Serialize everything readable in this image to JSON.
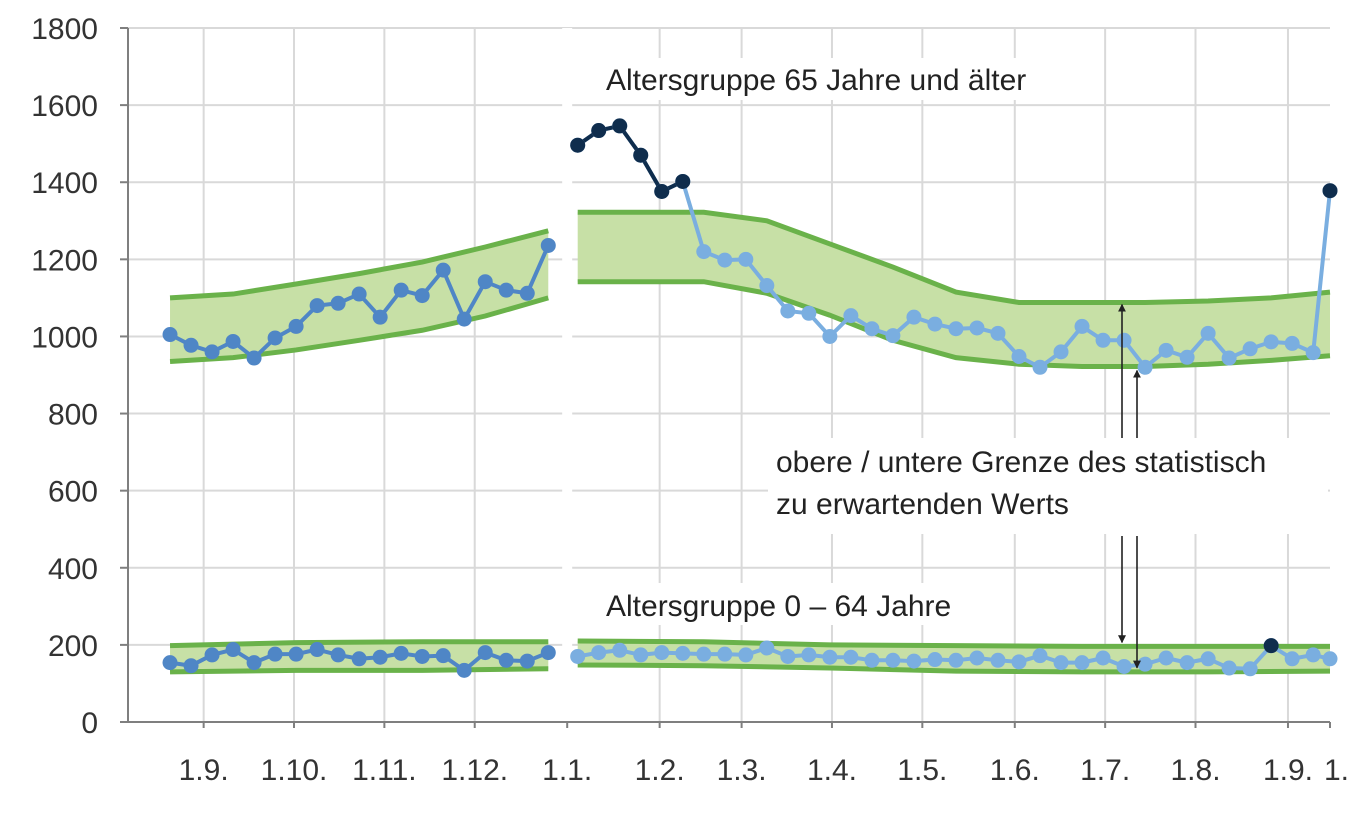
{
  "colors": {
    "band_fill": "#c7e0a6",
    "band_edge": "#6ab24a",
    "line_old": "#4f86c6",
    "line_new": "#7aaee0",
    "highlight": "#0f2d4d",
    "grid": "#d9d9d9",
    "axis": "#7f7f7f"
  },
  "chart_data": {
    "type": "line",
    "title": "",
    "xlabel": "",
    "ylabel": "",
    "ylim": [
      0,
      1800
    ],
    "yticks": [
      0,
      200,
      400,
      600,
      800,
      1000,
      1200,
      1400,
      1600,
      1800
    ],
    "xlim": [
      -3.6,
      53.6
    ],
    "xticks": [
      {
        "pos": 0,
        "label": "1.9."
      },
      {
        "pos": 4.3,
        "label": "1.10."
      },
      {
        "pos": 8.6,
        "label": "1.11."
      },
      {
        "pos": 12.9,
        "label": "1.12."
      },
      {
        "pos": 17.3,
        "label": "1.1."
      },
      {
        "pos": 21.7,
        "label": "1.2."
      },
      {
        "pos": 25.6,
        "label": "1.3."
      },
      {
        "pos": 29.9,
        "label": "1.4."
      },
      {
        "pos": 34.2,
        "label": "1.5."
      },
      {
        "pos": 38.6,
        "label": "1.6."
      },
      {
        "pos": 42.9,
        "label": "1.7."
      },
      {
        "pos": 47.2,
        "label": "1.8."
      },
      {
        "pos": 51.6,
        "label": "1.9."
      },
      {
        "pos": 53.6,
        "label": "1."
      }
    ],
    "grid": "vertical at month starts, horizontal at y ticks",
    "year_break_x": 17.3,
    "annotations": {
      "group_old": "Altersgruppe 65 Jahre und älter",
      "group_young": "Altersgruppe 0 – 64 Jahre",
      "band_line1": "obere / untere Grenze des statistisch",
      "band_line2": "zu erwartenden Werts"
    },
    "series": [
      {
        "group": "65+",
        "year": 1,
        "x": [
          -1.6,
          -0.6,
          0.4,
          1.4,
          2.4,
          3.4,
          4.4,
          5.4,
          6.4,
          7.4,
          8.4,
          9.4,
          10.4,
          11.4,
          12.4,
          13.4,
          14.4,
          15.4,
          16.4
        ],
        "y": [
          1005,
          977,
          960,
          987,
          944,
          996,
          1026,
          1080,
          1086,
          1110,
          1050,
          1120,
          1106,
          1172,
          1045,
          1142,
          1120,
          1112,
          1236
        ],
        "band_x": [
          -1.6,
          1.4,
          4.4,
          7.4,
          10.4,
          13.4,
          16.4
        ],
        "band_upper": [
          1100,
          1110,
          1136,
          1163,
          1193,
          1232,
          1274
        ],
        "band_lower": [
          935,
          945,
          965,
          990,
          1016,
          1053,
          1100
        ]
      },
      {
        "group": "65+",
        "year": 2,
        "x": [
          17.8,
          18.8,
          19.8,
          20.8,
          21.8,
          22.8,
          23.8,
          24.8,
          25.8,
          26.8,
          27.8,
          28.8,
          29.8,
          30.8,
          31.8,
          32.8,
          33.8,
          34.8,
          35.8,
          36.8,
          37.8,
          38.8,
          39.8,
          40.8,
          41.8,
          42.8,
          43.8,
          44.8,
          45.8,
          46.8,
          47.8,
          48.8,
          49.8,
          50.8,
          51.8,
          52.8,
          53.6
        ],
        "y": [
          1496,
          1534,
          1546,
          1470,
          1376,
          1402,
          1220,
          1198,
          1200,
          1132,
          1066,
          1060,
          1000,
          1054,
          1020,
          1002,
          1050,
          1032,
          1020,
          1022,
          1008,
          948,
          920,
          960,
          1026,
          990,
          990,
          920,
          964,
          946,
          1008,
          944,
          968,
          986,
          982,
          958,
          1378
        ],
        "highlight_x": [
          17.8,
          18.8,
          19.8,
          20.8,
          21.8,
          22.8,
          53.6
        ],
        "highlight_y": [
          1496,
          1534,
          1546,
          1470,
          1376,
          1402,
          1378
        ],
        "band_x": [
          17.8,
          20.8,
          23.8,
          26.8,
          29.8,
          32.8,
          35.8,
          38.8,
          41.8,
          44.8,
          47.8,
          50.8,
          53.6
        ],
        "band_upper": [
          1322,
          1322,
          1322,
          1300,
          1240,
          1180,
          1115,
          1088,
          1088,
          1088,
          1092,
          1100,
          1115
        ],
        "band_lower": [
          1142,
          1142,
          1142,
          1112,
          1055,
          990,
          945,
          928,
          922,
          922,
          928,
          938,
          950
        ]
      },
      {
        "group": "0-64",
        "year": 1,
        "x": [
          -1.6,
          -0.6,
          0.4,
          1.4,
          2.4,
          3.4,
          4.4,
          5.4,
          6.4,
          7.4,
          8.4,
          9.4,
          10.4,
          11.4,
          12.4,
          13.4,
          14.4,
          15.4,
          16.4
        ],
        "y": [
          154,
          146,
          174,
          188,
          154,
          176,
          176,
          188,
          174,
          164,
          168,
          178,
          170,
          172,
          134,
          180,
          160,
          158,
          180
        ],
        "band_x": [
          -1.6,
          4.4,
          10.4,
          16.4
        ],
        "band_upper": [
          198,
          206,
          208,
          208
        ],
        "band_lower": [
          130,
          134,
          134,
          138
        ]
      },
      {
        "group": "0-64",
        "year": 2,
        "x": [
          17.8,
          18.8,
          19.8,
          20.8,
          21.8,
          22.8,
          23.8,
          24.8,
          25.8,
          26.8,
          27.8,
          28.8,
          29.8,
          30.8,
          31.8,
          32.8,
          33.8,
          34.8,
          35.8,
          36.8,
          37.8,
          38.8,
          39.8,
          40.8,
          41.8,
          42.8,
          43.8,
          44.8,
          45.8,
          46.8,
          47.8,
          48.8,
          49.8,
          50.8,
          51.8,
          52.8,
          53.6
        ],
        "y": [
          170,
          180,
          186,
          174,
          180,
          178,
          176,
          176,
          174,
          192,
          170,
          174,
          168,
          168,
          160,
          160,
          158,
          162,
          160,
          166,
          160,
          156,
          172,
          154,
          154,
          166,
          144,
          150,
          166,
          154,
          164,
          140,
          138,
          198,
          164,
          174,
          164
        ],
        "highlight_x": [
          50.8
        ],
        "highlight_y": [
          198
        ],
        "band_x": [
          17.8,
          23.8,
          29.8,
          35.8,
          41.8,
          47.8,
          53.6
        ],
        "band_upper": [
          210,
          208,
          200,
          198,
          196,
          196,
          196
        ],
        "band_lower": [
          148,
          146,
          140,
          132,
          130,
          130,
          132
        ]
      }
    ]
  }
}
